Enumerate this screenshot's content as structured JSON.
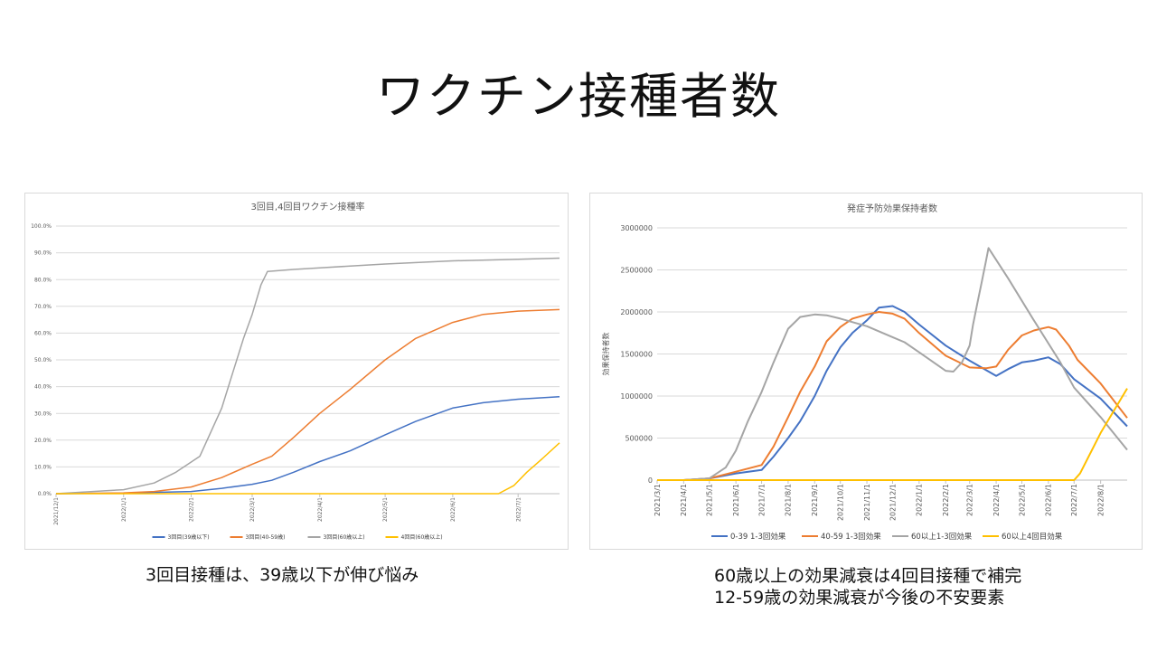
{
  "slide": {
    "title": "ワクチン接種者数",
    "caption_left": "3回目接種は、39歳以下が伸び悩み",
    "caption_right_lines": [
      "60歳以上の効果減衰は4回目接種で補完",
      "12-59歳の効果減衰が今後の不安要素"
    ]
  },
  "chart_data": [
    {
      "type": "line",
      "title": "3回目,4回目ワクチン接種率",
      "ylim": [
        0,
        100
      ],
      "ytick_labels": [
        "0.0%",
        "10.0%",
        "20.0%",
        "30.0%",
        "40.0%",
        "50.0%",
        "60.0%",
        "70.0%",
        "80.0%",
        "90.0%",
        "100.0%"
      ],
      "x_range": [
        "2021-12-01",
        "2022-07-20"
      ],
      "xtick_labels": [
        "2021/12/1",
        "2022/1/1",
        "2022/2/1",
        "2022/3/1",
        "2022/4/1",
        "2022/5/1",
        "2022/6/1",
        "2022/7/1"
      ],
      "xtick_dates": [
        "2021-12-01",
        "2022-01-01",
        "2022-02-01",
        "2022-03-01",
        "2022-04-01",
        "2022-05-01",
        "2022-06-01",
        "2022-07-01"
      ],
      "grid": "horizontal",
      "legend_position": "bottom",
      "series": [
        {
          "name": "3回目(39歳以下)",
          "color": "#4472C4",
          "points": [
            [
              "2021-12-01",
              0
            ],
            [
              "2022-01-01",
              0.2
            ],
            [
              "2022-02-01",
              0.8
            ],
            [
              "2022-02-15",
              2
            ],
            [
              "2022-03-01",
              3.5
            ],
            [
              "2022-03-10",
              5
            ],
            [
              "2022-03-20",
              8
            ],
            [
              "2022-04-01",
              12
            ],
            [
              "2022-04-15",
              16
            ],
            [
              "2022-05-01",
              22
            ],
            [
              "2022-05-15",
              27
            ],
            [
              "2022-06-01",
              32
            ],
            [
              "2022-06-15",
              34
            ],
            [
              "2022-07-01",
              35.3
            ],
            [
              "2022-07-20",
              36.2
            ]
          ]
        },
        {
          "name": "3回目(40-59歳)",
          "color": "#ED7D31",
          "points": [
            [
              "2021-12-01",
              0
            ],
            [
              "2022-01-01",
              0.3
            ],
            [
              "2022-01-15",
              0.8
            ],
            [
              "2022-02-01",
              2.5
            ],
            [
              "2022-02-15",
              6
            ],
            [
              "2022-03-01",
              11
            ],
            [
              "2022-03-10",
              14
            ],
            [
              "2022-03-20",
              21
            ],
            [
              "2022-04-01",
              30
            ],
            [
              "2022-04-15",
              39
            ],
            [
              "2022-05-01",
              50
            ],
            [
              "2022-05-15",
              58
            ],
            [
              "2022-06-01",
              64
            ],
            [
              "2022-06-15",
              67
            ],
            [
              "2022-07-01",
              68.2
            ],
            [
              "2022-07-20",
              68.8
            ]
          ]
        },
        {
          "name": "3回目(60歳以上)",
          "color": "#A5A5A5",
          "points": [
            [
              "2021-12-01",
              0
            ],
            [
              "2022-01-01",
              1.5
            ],
            [
              "2022-01-15",
              4
            ],
            [
              "2022-01-25",
              8
            ],
            [
              "2022-02-05",
              14
            ],
            [
              "2022-02-10",
              23
            ],
            [
              "2022-02-15",
              32
            ],
            [
              "2022-02-20",
              45
            ],
            [
              "2022-02-25",
              58
            ],
            [
              "2022-03-01",
              67
            ],
            [
              "2022-03-05",
              78
            ],
            [
              "2022-03-08",
              83
            ],
            [
              "2022-03-20",
              83.8
            ],
            [
              "2022-04-01",
              84.4
            ],
            [
              "2022-05-01",
              85.8
            ],
            [
              "2022-06-01",
              87
            ],
            [
              "2022-07-01",
              87.6
            ],
            [
              "2022-07-20",
              88
            ]
          ]
        },
        {
          "name": "4回目(60歳以上)",
          "color": "#FFC000",
          "points": [
            [
              "2021-12-01",
              0
            ],
            [
              "2022-06-22",
              0
            ],
            [
              "2022-06-29",
              3
            ],
            [
              "2022-07-05",
              8
            ],
            [
              "2022-07-12",
              13
            ],
            [
              "2022-07-20",
              19
            ]
          ]
        }
      ]
    },
    {
      "type": "line",
      "title": "発症予防効果保持者数",
      "ylabel": "効果保持者数",
      "ylim": [
        0,
        3000000
      ],
      "ytick_labels": [
        "0",
        "500000",
        "1000000",
        "1500000",
        "2000000",
        "2500000",
        "3000000"
      ],
      "x_range": [
        "2021-03-01",
        "2022-09-01"
      ],
      "xtick_labels": [
        "2021/3/1",
        "2021/4/1",
        "2021/5/1",
        "2021/6/1",
        "2021/7/1",
        "2021/8/1",
        "2021/9/1",
        "2021/10/1",
        "2021/11/1",
        "2021/12/1",
        "2022/1/1",
        "2022/2/1",
        "2022/3/1",
        "2022/4/1",
        "2022/5/1",
        "2022/6/1",
        "2022/7/1",
        "2022/8/1"
      ],
      "xtick_dates": [
        "2021-03-01",
        "2021-04-01",
        "2021-05-01",
        "2021-06-01",
        "2021-07-01",
        "2021-08-01",
        "2021-09-01",
        "2021-10-01",
        "2021-11-01",
        "2021-12-01",
        "2022-01-01",
        "2022-02-01",
        "2022-03-01",
        "2022-04-01",
        "2022-05-01",
        "2022-06-01",
        "2022-07-01",
        "2022-08-01"
      ],
      "grid": "horizontal",
      "legend_position": "bottom",
      "series": [
        {
          "name": "0-39 1-3回効果",
          "color": "#4472C4",
          "points": [
            [
              "2021-03-01",
              0
            ],
            [
              "2021-04-01",
              0
            ],
            [
              "2021-05-01",
              20000
            ],
            [
              "2021-06-01",
              80000
            ],
            [
              "2021-07-01",
              120000
            ],
            [
              "2021-07-15",
              280000
            ],
            [
              "2021-08-01",
              500000
            ],
            [
              "2021-08-15",
              700000
            ],
            [
              "2021-09-01",
              1000000
            ],
            [
              "2021-09-15",
              1300000
            ],
            [
              "2021-10-01",
              1580000
            ],
            [
              "2021-10-15",
              1750000
            ],
            [
              "2021-11-01",
              1900000
            ],
            [
              "2021-11-15",
              2050000
            ],
            [
              "2021-12-01",
              2070000
            ],
            [
              "2021-12-15",
              2000000
            ],
            [
              "2022-01-01",
              1850000
            ],
            [
              "2022-02-01",
              1600000
            ],
            [
              "2022-03-01",
              1420000
            ],
            [
              "2022-04-01",
              1240000
            ],
            [
              "2022-04-15",
              1320000
            ],
            [
              "2022-05-01",
              1400000
            ],
            [
              "2022-05-15",
              1420000
            ],
            [
              "2022-06-01",
              1460000
            ],
            [
              "2022-06-15",
              1380000
            ],
            [
              "2022-07-01",
              1200000
            ],
            [
              "2022-08-01",
              970000
            ],
            [
              "2022-09-01",
              640000
            ]
          ]
        },
        {
          "name": "40-59 1-3回効果",
          "color": "#ED7D31",
          "points": [
            [
              "2021-03-01",
              0
            ],
            [
              "2021-04-01",
              0
            ],
            [
              "2021-05-01",
              20000
            ],
            [
              "2021-06-01",
              100000
            ],
            [
              "2021-07-01",
              180000
            ],
            [
              "2021-07-15",
              400000
            ],
            [
              "2021-08-01",
              750000
            ],
            [
              "2021-08-15",
              1050000
            ],
            [
              "2021-09-01",
              1350000
            ],
            [
              "2021-09-15",
              1650000
            ],
            [
              "2021-10-01",
              1820000
            ],
            [
              "2021-10-15",
              1920000
            ],
            [
              "2021-11-01",
              1970000
            ],
            [
              "2021-11-15",
              2000000
            ],
            [
              "2021-12-01",
              1980000
            ],
            [
              "2021-12-15",
              1920000
            ],
            [
              "2022-01-01",
              1750000
            ],
            [
              "2022-02-01",
              1480000
            ],
            [
              "2022-03-01",
              1340000
            ],
            [
              "2022-03-20",
              1330000
            ],
            [
              "2022-04-01",
              1350000
            ],
            [
              "2022-04-15",
              1550000
            ],
            [
              "2022-05-01",
              1720000
            ],
            [
              "2022-05-15",
              1780000
            ],
            [
              "2022-06-01",
              1820000
            ],
            [
              "2022-06-10",
              1790000
            ],
            [
              "2022-06-25",
              1600000
            ],
            [
              "2022-07-05",
              1430000
            ],
            [
              "2022-08-01",
              1150000
            ],
            [
              "2022-09-01",
              740000
            ]
          ]
        },
        {
          "name": "60以上1-3回効果",
          "color": "#A5A5A5",
          "points": [
            [
              "2021-03-01",
              0
            ],
            [
              "2021-04-01",
              0
            ],
            [
              "2021-05-01",
              20000
            ],
            [
              "2021-05-20",
              150000
            ],
            [
              "2021-06-01",
              350000
            ],
            [
              "2021-06-15",
              700000
            ],
            [
              "2021-07-01",
              1050000
            ],
            [
              "2021-07-15",
              1400000
            ],
            [
              "2021-08-01",
              1800000
            ],
            [
              "2021-08-15",
              1940000
            ],
            [
              "2021-09-01",
              1970000
            ],
            [
              "2021-09-15",
              1960000
            ],
            [
              "2021-10-01",
              1920000
            ],
            [
              "2021-11-01",
              1830000
            ],
            [
              "2021-12-01",
              1700000
            ],
            [
              "2021-12-15",
              1640000
            ],
            [
              "2022-01-01",
              1520000
            ],
            [
              "2022-02-01",
              1300000
            ],
            [
              "2022-02-10",
              1290000
            ],
            [
              "2022-02-20",
              1400000
            ],
            [
              "2022-03-01",
              1600000
            ],
            [
              "2022-03-05",
              1850000
            ],
            [
              "2022-03-10",
              2100000
            ],
            [
              "2022-03-15",
              2350000
            ],
            [
              "2022-03-20",
              2600000
            ],
            [
              "2022-03-23",
              2760000
            ],
            [
              "2022-04-15",
              2400000
            ],
            [
              "2022-05-15",
              1900000
            ],
            [
              "2022-06-15",
              1400000
            ],
            [
              "2022-07-01",
              1100000
            ],
            [
              "2022-08-01",
              750000
            ],
            [
              "2022-09-01",
              360000
            ]
          ]
        },
        {
          "name": "60以上4回目効果",
          "color": "#FFC000",
          "points": [
            [
              "2021-03-01",
              0
            ],
            [
              "2022-07-01",
              0
            ],
            [
              "2022-07-08",
              80000
            ],
            [
              "2022-08-01",
              560000
            ],
            [
              "2022-09-01",
              1090000
            ]
          ]
        }
      ]
    }
  ]
}
